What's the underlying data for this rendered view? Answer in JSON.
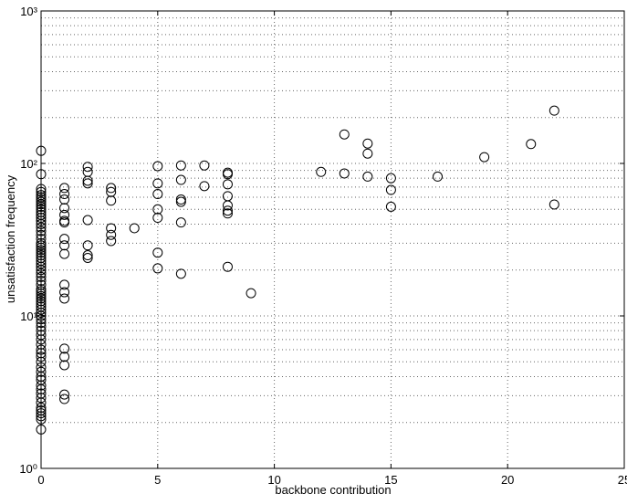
{
  "chart_data": {
    "type": "scatter",
    "x_label": "backbone contribution",
    "y_label": "unsatisfaction frequency",
    "xlim": [
      0,
      25
    ],
    "xticks": [
      0,
      5,
      10,
      15,
      20,
      25
    ],
    "ylim": [
      1,
      1000
    ],
    "yscale": "log",
    "yticks": [
      {
        "value": 1,
        "label": "10⁰"
      },
      {
        "value": 10,
        "label": "10¹"
      },
      {
        "value": 100,
        "label": "10²"
      },
      {
        "value": 1000,
        "label": "10³"
      }
    ],
    "grid": true,
    "color": "#000000",
    "x": [
      0,
      0,
      0,
      0,
      0,
      0,
      0,
      0,
      0,
      0,
      0,
      0,
      0,
      0,
      0,
      0,
      0,
      0,
      0,
      0,
      0,
      0,
      0,
      0,
      0,
      0,
      0,
      0,
      0,
      0,
      0,
      0,
      0,
      0,
      0,
      0,
      0,
      0,
      0,
      0,
      0,
      0,
      0,
      0,
      0,
      0,
      0,
      0,
      0,
      0,
      0,
      0,
      0,
      0,
      0,
      0,
      0,
      0,
      0,
      0,
      0,
      0,
      0,
      0,
      0,
      0,
      0,
      0,
      0,
      0,
      0,
      0,
      1,
      1,
      1,
      1,
      1,
      1,
      1,
      1,
      1,
      1,
      1,
      1,
      1,
      1,
      1,
      1,
      1,
      1,
      2,
      2,
      2,
      2,
      2,
      2,
      2,
      2,
      3,
      3,
      3,
      3,
      3,
      3,
      4,
      5,
      5,
      5,
      5,
      5,
      5,
      5,
      6,
      6,
      6,
      6,
      6,
      6,
      7,
      7,
      8,
      8,
      8,
      8,
      8,
      8,
      8,
      8,
      9,
      12,
      13,
      13,
      14,
      14,
      14,
      15,
      15,
      15,
      17,
      19,
      21,
      22,
      22
    ],
    "values": [
      121,
      85,
      68,
      65,
      62,
      60,
      58,
      56,
      54,
      52,
      50,
      48,
      46,
      44,
      42,
      40,
      38,
      36,
      34,
      32,
      30,
      29,
      28,
      27,
      26,
      25,
      24,
      23,
      22,
      21,
      20,
      19,
      18,
      17,
      16,
      15,
      14.5,
      14,
      13.5,
      13,
      12.5,
      12,
      11.5,
      11,
      10.5,
      10,
      9.5,
      9,
      8.5,
      8,
      7.5,
      7,
      6.5,
      6,
      5.7,
      5.4,
      5,
      4.6,
      4.3,
      4,
      3.8,
      3.5,
      3.3,
      3.1,
      2.9,
      2.7,
      2.5,
      2.4,
      2.3,
      2.2,
      2.1,
      1.8,
      69,
      63,
      58,
      51,
      46,
      42,
      41,
      32,
      29,
      25.5,
      16,
      14.3,
      13,
      6.1,
      5.4,
      4.75,
      3.05,
      2.85,
      95,
      88,
      77,
      74,
      42.5,
      29,
      25,
      24,
      69,
      65,
      57,
      37.6,
      34,
      31,
      37.6,
      96,
      74,
      63,
      50,
      44,
      26,
      20.5,
      97,
      78,
      58,
      56,
      41,
      18.9,
      97,
      71,
      87,
      85,
      73,
      61,
      53,
      49,
      47,
      21,
      14.1,
      88,
      155,
      86,
      135,
      116,
      82,
      80,
      67,
      52,
      82,
      110,
      134,
      222,
      53.8
    ]
  }
}
